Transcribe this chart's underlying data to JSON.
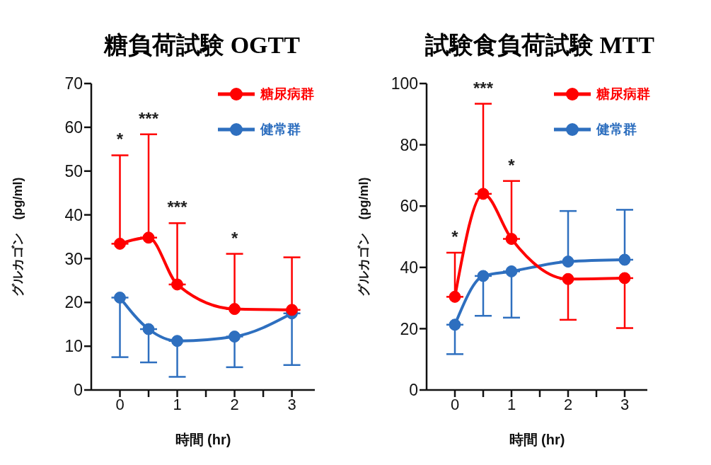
{
  "chart_data": [
    {
      "type": "line",
      "title": "糖負荷試験 OGTT",
      "xlabel": "時間 (hr)",
      "ylabel": "グルカゴン　(pg/ml)",
      "x": [
        0,
        0.5,
        1,
        2,
        3
      ],
      "xlim": [
        -0.5,
        3.4
      ],
      "xticks": [
        0,
        {
          "value": 0.5,
          "label": null
        },
        1,
        {
          "value": 1.5,
          "label": null
        },
        2,
        {
          "value": 2.5,
          "label": null
        },
        3
      ],
      "ylim": [
        0,
        70
      ],
      "yticks": [
        0,
        10,
        20,
        30,
        40,
        50,
        60,
        70
      ],
      "marker": "circle",
      "line_style": "solid",
      "legend": "top right",
      "series": [
        {
          "name": "糖尿病群",
          "color": "#ff0000",
          "values": [
            33.4,
            34.8,
            24.1,
            18.5,
            18.3
          ],
          "errors": [
            [
              33.4,
              53.6
            ],
            [
              34.8,
              58.4
            ],
            [
              24.1,
              38.1
            ],
            [
              18.5,
              31.1
            ],
            [
              18.3,
              30.3
            ]
          ]
        },
        {
          "name": "健常群",
          "color": "#2e6fbf",
          "values": [
            21.1,
            13.9,
            11.2,
            12.2,
            17.5
          ],
          "errors": [
            [
              7.5,
              21.1
            ],
            [
              6.3,
              13.9
            ],
            [
              3.0,
              11.2
            ],
            [
              5.2,
              12.2
            ],
            [
              5.7,
              17.5
            ]
          ]
        }
      ],
      "annotations": [
        {
          "text": "*",
          "x": 0,
          "y": 53.6
        },
        {
          "text": "***",
          "x": 0.5,
          "y": 58.4
        },
        {
          "text": "***",
          "x": 1,
          "y": 38.1
        },
        {
          "text": "*",
          "x": 2,
          "y": 31.1
        }
      ]
    },
    {
      "type": "line",
      "title": "試験食負荷試験 MTT",
      "xlabel": "時間 (hr)",
      "ylabel": "グルカゴン　(pg/ml)",
      "x": [
        0,
        0.5,
        1,
        2,
        3
      ],
      "xlim": [
        -0.5,
        3.4
      ],
      "xticks": [
        0,
        {
          "value": 0.5,
          "label": null
        },
        1,
        {
          "value": 1.5,
          "label": null
        },
        2,
        {
          "value": 2.5,
          "label": null
        },
        3
      ],
      "ylim": [
        0,
        100
      ],
      "yticks": [
        0,
        20,
        40,
        60,
        80,
        100
      ],
      "marker": "circle",
      "line_style": "solid",
      "legend": "top right",
      "series": [
        {
          "name": "糖尿病群",
          "color": "#ff0000",
          "values": [
            30.4,
            64.0,
            49.3,
            36.2,
            36.5
          ],
          "errors": [
            [
              30.4,
              44.8
            ],
            [
              64.0,
              93.4
            ],
            [
              49.3,
              68.2
            ],
            [
              22.9,
              36.2
            ],
            [
              20.2,
              36.5
            ]
          ]
        },
        {
          "name": "健常群",
          "color": "#2e6fbf",
          "values": [
            21.3,
            37.2,
            38.7,
            41.9,
            42.5
          ],
          "errors": [
            [
              11.7,
              21.3
            ],
            [
              24.2,
              37.2
            ],
            [
              23.6,
              38.7
            ],
            [
              41.9,
              58.4
            ],
            [
              42.5,
              58.8
            ]
          ]
        }
      ],
      "annotations": [
        {
          "text": "*",
          "x": 0,
          "y": 44.8
        },
        {
          "text": "***",
          "x": 0.5,
          "y": 93.4
        },
        {
          "text": "*",
          "x": 1,
          "y": 68.2
        }
      ]
    }
  ]
}
